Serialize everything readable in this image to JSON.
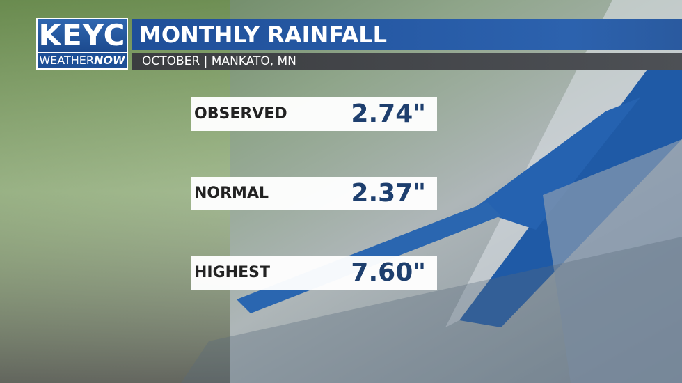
{
  "header": {
    "logo": {
      "station": "KEYC",
      "brand_left": "WEATHER",
      "brand_right": "NOW"
    },
    "title": "MONTHLY RAINFALL",
    "subtitle": "OCTOBER | MANKATO, MN"
  },
  "rows": [
    {
      "label": "OBSERVED",
      "value": "2.74\""
    },
    {
      "label": "NORMAL",
      "value": "2.37\""
    },
    {
      "label": "HIGHEST",
      "value": "7.60\""
    }
  ]
}
